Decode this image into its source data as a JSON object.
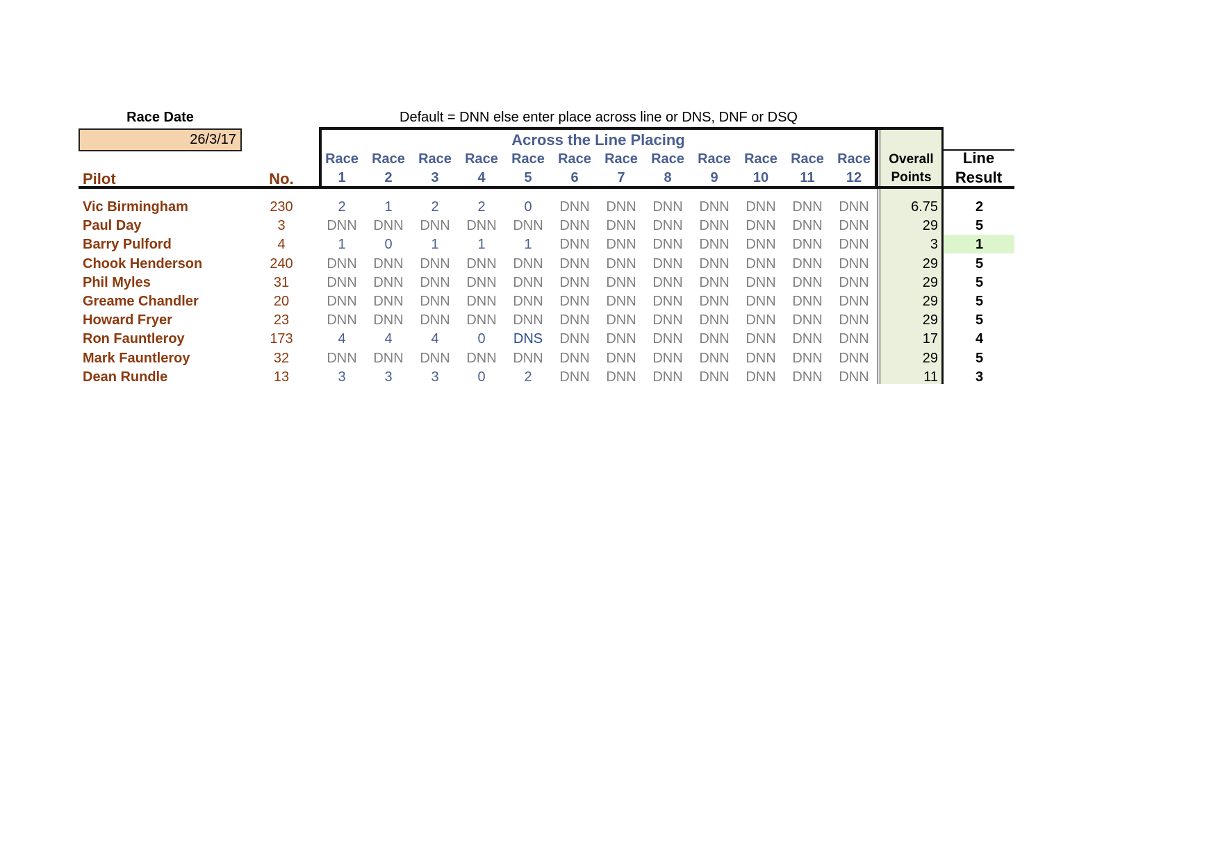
{
  "race_date": {
    "label": "Race Date",
    "value": "26/3/17"
  },
  "instructions": "Default = DNN else enter place across line or DNS, DNF or DSQ",
  "placing_title": "Across the Line Placing",
  "headers": {
    "pilot": "Pilot",
    "no": "No.",
    "race_word": "Race",
    "races": [
      "1",
      "2",
      "3",
      "4",
      "5",
      "6",
      "7",
      "8",
      "9",
      "10",
      "11",
      "12"
    ],
    "overall_line1": "Overall",
    "overall_line2": "Points",
    "result_line1": "Line",
    "result_line2": "Result"
  },
  "colors": {
    "pilot": "#8b3a0f",
    "race_header": "#4a5f8f",
    "dnn": "#808080",
    "date_box": "#f5d3ad",
    "overall_bg": "#ebf0dc",
    "winner_bg": "#ddf5cc"
  },
  "rows": [
    {
      "pilot": "Vic Birmingham",
      "no": "230",
      "races": [
        "2",
        "1",
        "2",
        "2",
        "0",
        "DNN",
        "DNN",
        "DNN",
        "DNN",
        "DNN",
        "DNN",
        "DNN"
      ],
      "points": "6.75",
      "result": "2"
    },
    {
      "pilot": "Paul Day",
      "no": "3",
      "races": [
        "DNN",
        "DNN",
        "DNN",
        "DNN",
        "DNN",
        "DNN",
        "DNN",
        "DNN",
        "DNN",
        "DNN",
        "DNN",
        "DNN"
      ],
      "points": "29",
      "result": "5"
    },
    {
      "pilot": "Barry Pulford",
      "no": "4",
      "races": [
        "1",
        "0",
        "1",
        "1",
        "1",
        "DNN",
        "DNN",
        "DNN",
        "DNN",
        "DNN",
        "DNN",
        "DNN"
      ],
      "points": "3",
      "result": "1",
      "highlight": true
    },
    {
      "pilot": "Chook Henderson",
      "no": "240",
      "races": [
        "DNN",
        "DNN",
        "DNN",
        "DNN",
        "DNN",
        "DNN",
        "DNN",
        "DNN",
        "DNN",
        "DNN",
        "DNN",
        "DNN"
      ],
      "points": "29",
      "result": "5"
    },
    {
      "pilot": "Phil Myles",
      "no": "31",
      "races": [
        "DNN",
        "DNN",
        "DNN",
        "DNN",
        "DNN",
        "DNN",
        "DNN",
        "DNN",
        "DNN",
        "DNN",
        "DNN",
        "DNN"
      ],
      "points": "29",
      "result": "5"
    },
    {
      "pilot": "Greame Chandler",
      "no": "20",
      "races": [
        "DNN",
        "DNN",
        "DNN",
        "DNN",
        "DNN",
        "DNN",
        "DNN",
        "DNN",
        "DNN",
        "DNN",
        "DNN",
        "DNN"
      ],
      "points": "29",
      "result": "5"
    },
    {
      "pilot": "Howard Fryer",
      "no": "23",
      "races": [
        "DNN",
        "DNN",
        "DNN",
        "DNN",
        "DNN",
        "DNN",
        "DNN",
        "DNN",
        "DNN",
        "DNN",
        "DNN",
        "DNN"
      ],
      "points": "29",
      "result": "5"
    },
    {
      "pilot": "Ron Fauntleroy",
      "no": "173",
      "races": [
        "4",
        "4",
        "4",
        "0",
        "DNS",
        "DNN",
        "DNN",
        "DNN",
        "DNN",
        "DNN",
        "DNN",
        "DNN"
      ],
      "points": "17",
      "result": "4"
    },
    {
      "pilot": "Mark Fauntleroy",
      "no": "32",
      "races": [
        "DNN",
        "DNN",
        "DNN",
        "DNN",
        "DNN",
        "DNN",
        "DNN",
        "DNN",
        "DNN",
        "DNN",
        "DNN",
        "DNN"
      ],
      "points": "29",
      "result": "5"
    },
    {
      "pilot": "Dean Rundle",
      "no": "13",
      "races": [
        "3",
        "3",
        "3",
        "0",
        "2",
        "DNN",
        "DNN",
        "DNN",
        "DNN",
        "DNN",
        "DNN",
        "DNN"
      ],
      "points": "11",
      "result": "3"
    }
  ]
}
